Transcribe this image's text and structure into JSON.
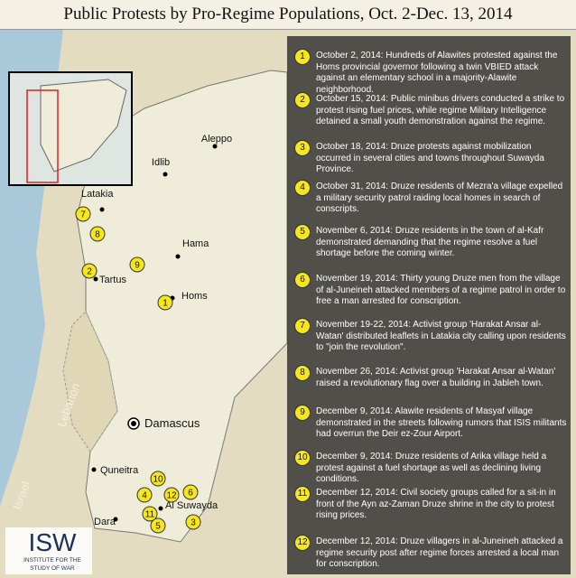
{
  "header": {
    "title": "Public Protests by Pro-Regime Populations, Oct. 2-Dec. 13, 2014"
  },
  "map": {
    "cities": [
      {
        "name": "Aleppo",
        "size": "normal"
      },
      {
        "name": "Idlib",
        "size": "normal"
      },
      {
        "name": "Latakia",
        "size": "normal"
      },
      {
        "name": "Hama",
        "size": "normal"
      },
      {
        "name": "Tartus",
        "size": "normal"
      },
      {
        "name": "Homs",
        "size": "normal"
      },
      {
        "name": "Damascus",
        "size": "capital"
      },
      {
        "name": "Quneitra",
        "size": "normal"
      },
      {
        "name": "Al Suwayda",
        "size": "normal"
      },
      {
        "name": "Dara",
        "size": "normal"
      }
    ],
    "countries": [
      "Lebanon",
      "Israel"
    ]
  },
  "events": [
    {
      "number": 1,
      "text": "October 2, 2014: Hundreds of Alawites protested against the Homs provincial governor following a twin VBIED attack against an elementary school in a majority-Alawite neighborhood."
    },
    {
      "number": 2,
      "text": "October 15, 2014: Public minibus drivers conducted a strike to protest rising fuel prices, while regime Military Intelligence detained a small youth demonstration against the regime."
    },
    {
      "number": 3,
      "text": "October 18, 2014: Druze protests against mobilization occurred in several cities and towns throughout Suwayda Province."
    },
    {
      "number": 4,
      "text": "October 31, 2014: Druze residents of Mezra'a village expelled a military security patrol raiding local homes in search of conscripts."
    },
    {
      "number": 5,
      "text": "November 6, 2014: Druze residents in the town of al-Kafr demonstrated demanding that the regime resolve a fuel shortage before the coming winter."
    },
    {
      "number": 6,
      "text": "November 19, 2014: Thirty young Druze men from the village of al-Juneineh attacked members of a regime patrol in order to free a man arrested for conscription."
    },
    {
      "number": 7,
      "text": "November 19-22, 2014: Activist group 'Harakat Ansar al-Watan' distributed leaflets in Latakia city calling upon residents to \"join the revolution\"."
    },
    {
      "number": 8,
      "text": "November 26, 2014: Activist group 'Harakat Ansar al-Watan' raised a revolutionary flag over a building in Jableh town."
    },
    {
      "number": 9,
      "text": "December 9, 2014: Alawite residents of Masyaf village demonstrated in the streets following rumors that ISIS militants had overrun the Deir ez-Zour Airport."
    },
    {
      "number": 10,
      "text": "December 9, 2014: Druze residents of Arika village held a protest against a fuel shortage as well as declining living conditions."
    },
    {
      "number": 11,
      "text": "December 12, 2014: Civil society groups called for a sit-in in front of the Ayn az-Zaman Druze shrine in the city to protest rising prices."
    },
    {
      "number": 12,
      "text": "December 12, 2014: Druze villagers in al-Juneineh attacked a regime security post after regime forces arrested a local man for conscription."
    }
  ],
  "logo": {
    "acronym": "ISW",
    "line1": "INSTITUTE FOR THE",
    "line2": "STUDY OF WAR"
  }
}
